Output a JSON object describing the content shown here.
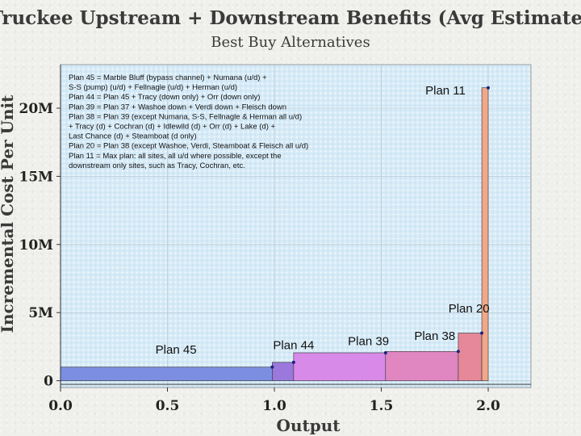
{
  "chart_data": {
    "type": "bar",
    "title": "Truckee Upstream + Downstream Benefits (Avg Estimate)",
    "subtitle": "Best Buy Alternatives",
    "xlabel": "Output",
    "ylabel": "Incremental Cost Per Unit",
    "xlim": [
      0,
      2.2
    ],
    "ylim": [
      -0.5,
      23.2
    ],
    "x_ticks": [
      {
        "value": 0.0,
        "label": "0.0"
      },
      {
        "value": 0.5,
        "label": "0.5"
      },
      {
        "value": 1.0,
        "label": "1.0"
      },
      {
        "value": 1.5,
        "label": "1.5"
      },
      {
        "value": 2.0,
        "label": "2.0"
      }
    ],
    "y_ticks": [
      {
        "value": 0,
        "label": "0"
      },
      {
        "value": 5,
        "label": "5M"
      },
      {
        "value": 10,
        "label": "10M"
      },
      {
        "value": 15,
        "label": "15M"
      },
      {
        "value": 20,
        "label": "20M"
      }
    ],
    "grid": true,
    "series": [
      {
        "name": "Plan 45",
        "x_start": 0.0,
        "x_end": 0.99,
        "value": 1.0,
        "color": "#7b8ee0",
        "label_x": 0.54,
        "label_y": 2.0
      },
      {
        "name": "Plan 44",
        "x_start": 0.99,
        "x_end": 1.09,
        "value": 1.35,
        "color": "#9a78dc",
        "label_x": 1.09,
        "label_y": 2.3
      },
      {
        "name": "Plan 39",
        "x_start": 1.09,
        "x_end": 1.52,
        "value": 2.05,
        "color": "#d88ae8",
        "label_x": 1.44,
        "label_y": 2.6
      },
      {
        "name": "Plan 38",
        "x_start": 1.52,
        "x_end": 1.86,
        "value": 2.15,
        "color": "#e086c0",
        "label_x": 1.75,
        "label_y": 3.0
      },
      {
        "name": "Plan 20",
        "x_start": 1.86,
        "x_end": 1.97,
        "value": 3.5,
        "color": "#e58899",
        "label_x": 1.91,
        "label_y": 5.0
      },
      {
        "name": "Plan 11",
        "x_start": 1.97,
        "x_end": 2.0,
        "value": 21.5,
        "color": "#f0a888",
        "label_x": 1.8,
        "label_y": 21.0
      }
    ],
    "legend_lines": [
      "Plan 45 = Marble Bluff (bypass channel) +  Numana (u/d) +",
      "S-S (pump) (u/d) + Fellnagle (u/d) + Herman (u/d)",
      "Plan 44 = Plan 45 + Tracy (down only) + Orr (down only)",
      "Plan 39 = Plan 37 + Washoe down + Verdi down + Fleisch down",
      "Plan 38 = Plan 39 (except Numana, S-S, Fellnagle & Herman all u/d)",
      "+ Tracy (d) + Cochran (d) + Idlewild (d) + Orr (d) + Lake (d) +",
      "Last Chance (d) + Steamboat (d only)",
      "Plan 20 = Plan 38 (except Washoe, Verdi, Steamboat & Fleisch all u/d)",
      "Plan 11 = Max plan:  all sites, all u/d where possible, except the",
      "downstream only sites, such as Tracy, Cochran, etc."
    ],
    "legend_placement": "top-left"
  }
}
